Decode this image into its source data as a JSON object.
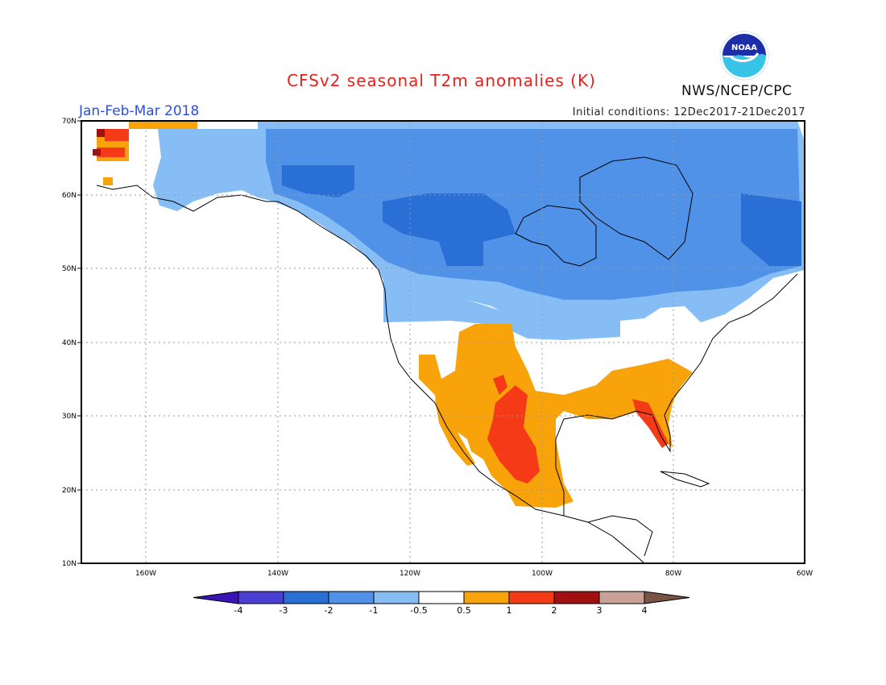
{
  "header": {
    "title": "CFSv2 seasonal T2m anomalies (K)",
    "period": "Jan-Feb-Mar 2018",
    "initial_conditions": "Initial conditions: 12Dec2017-21Dec2017",
    "agency": "NWS/NCEP/CPC",
    "logo_text": "NOAA"
  },
  "map": {
    "lat_labels": [
      "70N",
      "60N",
      "50N",
      "40N",
      "30N",
      "20N",
      "10N"
    ],
    "lon_labels": [
      "160W",
      "140W",
      "120W",
      "100W",
      "80W",
      "60W"
    ]
  },
  "colorbar": {
    "tick_labels": [
      "-4",
      "-3",
      "-2",
      "-1",
      "-0.5",
      "0.5",
      "1",
      "2",
      "3",
      "4"
    ],
    "colors": [
      "#3a14b4",
      "#4a3fd2",
      "#2a6fd6",
      "#4f92e8",
      "#86bdf4",
      "#ffffff",
      "#f9a30b",
      "#f43a16",
      "#a11010",
      "#c8a295",
      "#7a5347"
    ]
  },
  "colors": {
    "title": "#e8201c",
    "period": "#2a4fe0",
    "border": "#000000",
    "grid": "#9a9a9a"
  }
}
